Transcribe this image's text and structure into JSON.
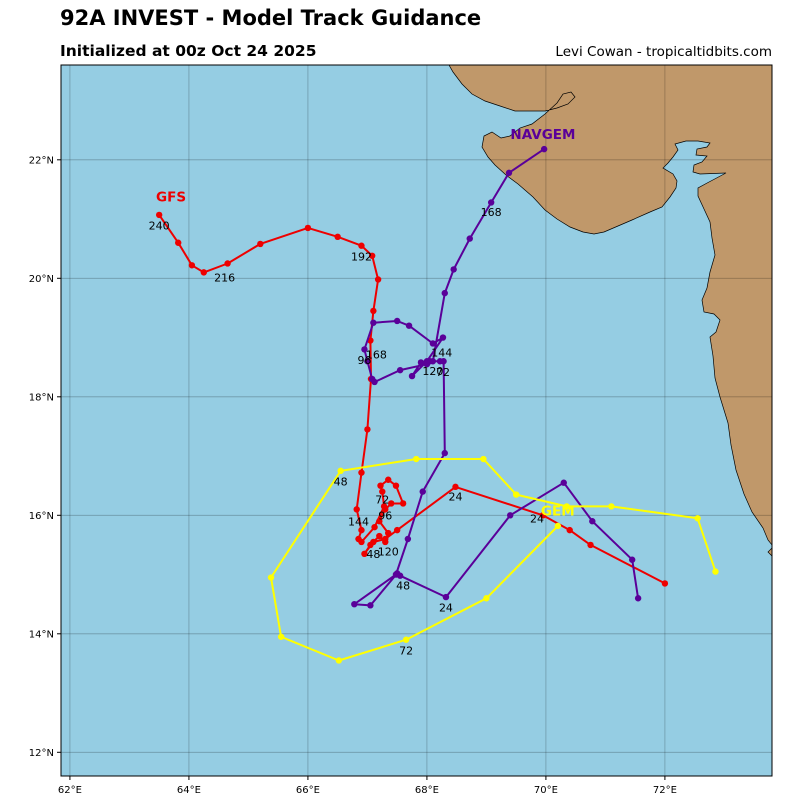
{
  "header": {
    "title": "92A INVEST - Model Track Guidance",
    "subtitle": "Initialized at 00z Oct 24 2025",
    "credit": "Levi Cowan - tropicaltidbits.com"
  },
  "map": {
    "lon_range": [
      61.85,
      73.8
    ],
    "lat_range": [
      11.6,
      23.6
    ],
    "x_ticks": [
      {
        "value": 62,
        "label": "62°E"
      },
      {
        "value": 64,
        "label": "64°E"
      },
      {
        "value": 66,
        "label": "66°E"
      },
      {
        "value": 68,
        "label": "68°E"
      },
      {
        "value": 70,
        "label": "70°E"
      },
      {
        "value": 72,
        "label": "72°E"
      }
    ],
    "y_ticks": [
      {
        "value": 12,
        "label": "12°N"
      },
      {
        "value": 14,
        "label": "14°N"
      },
      {
        "value": 16,
        "label": "16°N"
      },
      {
        "value": 18,
        "label": "18°N"
      },
      {
        "value": 20,
        "label": "20°N"
      },
      {
        "value": 22,
        "label": "22°N"
      }
    ],
    "grid": true,
    "ocean_color": "#95cde3",
    "land_color": "#c0986a"
  },
  "tracks": [
    {
      "name": "GFS",
      "color": "#ee0000",
      "label_color": "#ee0000",
      "label_pos": [
        63.7,
        21.3
      ],
      "points": [
        [
          72.0,
          14.85
        ],
        [
          70.75,
          15.5
        ],
        [
          70.4,
          15.75
        ],
        [
          69.95,
          16.0
        ],
        [
          68.48,
          16.48
        ],
        [
          67.5,
          15.75
        ],
        [
          67.3,
          15.6
        ],
        [
          67.1,
          15.55
        ],
        [
          66.95,
          15.35
        ],
        [
          67.05,
          15.5
        ],
        [
          67.2,
          15.65
        ],
        [
          67.3,
          15.55
        ],
        [
          67.35,
          15.7
        ],
        [
          67.2,
          15.9
        ],
        [
          67.3,
          16.1
        ],
        [
          67.4,
          16.2
        ],
        [
          67.6,
          16.2
        ],
        [
          67.48,
          16.5
        ],
        [
          67.35,
          16.6
        ],
        [
          67.22,
          16.5
        ],
        [
          67.25,
          16.4
        ],
        [
          67.28,
          16.15
        ],
        [
          67.12,
          15.8
        ],
        [
          66.9,
          15.55
        ],
        [
          66.85,
          15.6
        ],
        [
          66.9,
          15.75
        ],
        [
          66.82,
          16.1
        ],
        [
          66.9,
          16.72
        ],
        [
          67.0,
          17.45
        ],
        [
          67.06,
          18.3
        ],
        [
          67.05,
          18.95
        ],
        [
          67.1,
          19.45
        ],
        [
          67.18,
          19.98
        ],
        [
          67.08,
          20.38
        ],
        [
          66.9,
          20.55
        ],
        [
          66.5,
          20.7
        ],
        [
          66.0,
          20.85
        ],
        [
          65.2,
          20.58
        ],
        [
          64.65,
          20.25
        ],
        [
          64.25,
          20.1
        ],
        [
          64.05,
          20.22
        ],
        [
          63.82,
          20.6
        ],
        [
          63.5,
          21.07
        ]
      ],
      "hour_labels": [
        {
          "text": "24",
          "pos": [
            68.48,
            16.25
          ]
        },
        {
          "text": "48",
          "pos": [
            67.1,
            15.28
          ]
        },
        {
          "text": "72",
          "pos": [
            67.25,
            16.2
          ]
        },
        {
          "text": "96",
          "pos": [
            67.3,
            15.93
          ]
        },
        {
          "text": "120",
          "pos": [
            67.35,
            15.32
          ]
        },
        {
          "text": "144",
          "pos": [
            66.85,
            15.83
          ]
        },
        {
          "text": "192",
          "pos": [
            66.9,
            20.3
          ]
        },
        {
          "text": "216",
          "pos": [
            64.6,
            19.95
          ]
        },
        {
          "text": "240",
          "pos": [
            63.5,
            20.82
          ]
        }
      ]
    },
    {
      "name": "NAVGEM",
      "color": "#5a0099",
      "label_color": "#5a0099",
      "label_pos": [
        69.95,
        22.35
      ],
      "points": [
        [
          71.55,
          14.6
        ],
        [
          71.45,
          15.25
        ],
        [
          70.78,
          15.9
        ],
        [
          70.3,
          16.55
        ],
        [
          69.4,
          16.0
        ],
        [
          68.32,
          14.62
        ],
        [
          67.55,
          14.98
        ],
        [
          67.5,
          15.02
        ],
        [
          67.05,
          14.48
        ],
        [
          66.78,
          14.5
        ],
        [
          67.48,
          15.0
        ],
        [
          67.68,
          15.6
        ],
        [
          67.93,
          16.4
        ],
        [
          68.3,
          17.05
        ],
        [
          68.28,
          18.6
        ],
        [
          68.22,
          18.6
        ],
        [
          68.05,
          18.6
        ],
        [
          67.9,
          18.58
        ],
        [
          67.75,
          18.35
        ],
        [
          68.0,
          18.6
        ],
        [
          68.27,
          19.0
        ],
        [
          68.1,
          18.9
        ],
        [
          67.7,
          19.2
        ],
        [
          67.5,
          19.28
        ],
        [
          67.1,
          19.25
        ],
        [
          66.95,
          18.8
        ],
        [
          67.0,
          18.6
        ],
        [
          67.08,
          18.3
        ],
        [
          67.12,
          18.25
        ],
        [
          67.55,
          18.45
        ],
        [
          68.0,
          18.55
        ],
        [
          68.1,
          18.6
        ],
        [
          68.3,
          19.75
        ],
        [
          68.45,
          20.15
        ],
        [
          68.72,
          20.67
        ],
        [
          69.08,
          21.28
        ],
        [
          69.38,
          21.78
        ],
        [
          69.97,
          22.18
        ]
      ],
      "hour_labels": [
        {
          "text": "24",
          "pos": [
            68.32,
            14.38
          ]
        },
        {
          "text": "48",
          "pos": [
            67.6,
            14.75
          ]
        },
        {
          "text": "72",
          "pos": [
            68.27,
            18.35
          ]
        },
        {
          "text": "96",
          "pos": [
            66.95,
            18.55
          ]
        },
        {
          "text": "120",
          "pos": [
            68.1,
            18.37
          ]
        },
        {
          "text": "144",
          "pos": [
            68.25,
            18.68
          ]
        },
        {
          "text": "168",
          "pos": [
            67.15,
            18.65
          ]
        },
        {
          "text": "168",
          "pos": [
            69.08,
            21.05
          ]
        }
      ]
    },
    {
      "name": "GEM",
      "color": "#ffff00",
      "label_color": "#ffff00",
      "label_pos": [
        70.2,
        16.0
      ],
      "points": [
        [
          72.85,
          15.05
        ],
        [
          72.55,
          15.95
        ],
        [
          71.1,
          16.15
        ],
        [
          70.35,
          16.15
        ],
        [
          69.5,
          16.35
        ],
        [
          68.95,
          16.95
        ],
        [
          67.82,
          16.95
        ],
        [
          66.55,
          16.75
        ],
        [
          65.38,
          14.95
        ],
        [
          65.55,
          13.95
        ],
        [
          66.52,
          13.55
        ],
        [
          67.65,
          13.9
        ],
        [
          69.0,
          14.6
        ],
        [
          70.2,
          15.82
        ]
      ],
      "hour_labels": [
        {
          "text": "24",
          "pos": [
            69.85,
            15.88
          ]
        },
        {
          "text": "48",
          "pos": [
            66.55,
            16.5
          ]
        },
        {
          "text": "72",
          "pos": [
            67.65,
            13.65
          ]
        }
      ]
    }
  ]
}
